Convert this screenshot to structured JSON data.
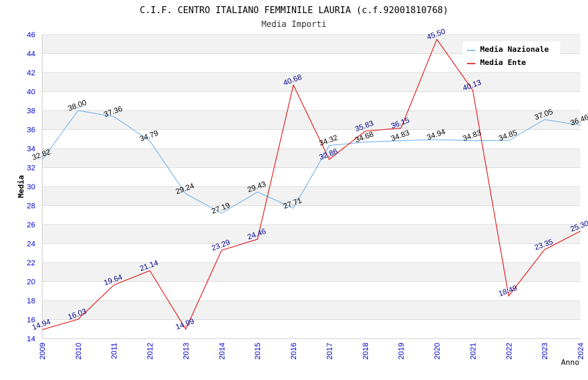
{
  "chart_data": {
    "type": "line",
    "title": "C.I.F. CENTRO ITALIANO FEMMINILE LAURIA (c.f.92001810768)",
    "subtitle": "Media Importi",
    "xlabel": "Anno",
    "ylabel": "Media",
    "ylim": [
      14,
      46
    ],
    "yticks": [
      "14",
      "16",
      "18",
      "20",
      "22",
      "24",
      "26",
      "28",
      "30",
      "32",
      "34",
      "36",
      "38",
      "40",
      "42",
      "44",
      "46"
    ],
    "categories": [
      "2009",
      "2010",
      "2011",
      "2012",
      "2013",
      "2014",
      "2015",
      "2016",
      "2017",
      "2018",
      "2019",
      "2020",
      "2021",
      "2022",
      "2023",
      "2024"
    ],
    "grid": "horizontal bands",
    "legend_position": "top-right",
    "series": [
      {
        "name": "Media Nazionale",
        "color": "#6aaee8",
        "values": [
          32.82,
          38.0,
          37.36,
          34.79,
          29.24,
          27.19,
          29.43,
          27.71,
          34.32,
          34.68,
          34.83,
          34.94,
          34.83,
          34.85,
          37.05,
          36.46
        ],
        "labels": [
          "32.82",
          "38.00",
          "37.36",
          "34.79",
          "29.24",
          "27.19",
          "29.43",
          "27.71",
          "34.32",
          "34.68",
          "34.83",
          "34.94",
          "34.83",
          "34.85",
          "37.05",
          "36.46"
        ]
      },
      {
        "name": "Media Ente",
        "color": "#e00000",
        "values": [
          14.94,
          16.03,
          19.64,
          21.14,
          14.99,
          23.29,
          24.46,
          40.68,
          32.86,
          35.83,
          36.15,
          45.5,
          40.13,
          18.49,
          23.35,
          25.3
        ],
        "labels": [
          "14.94",
          "16.03",
          "19.64",
          "21.14",
          "14.99",
          "23.29",
          "24.46",
          "40.68",
          "32.86",
          "35.83",
          "36.15",
          "45.50",
          "40.13",
          "18.49",
          "23.35",
          "25.30"
        ]
      }
    ]
  }
}
